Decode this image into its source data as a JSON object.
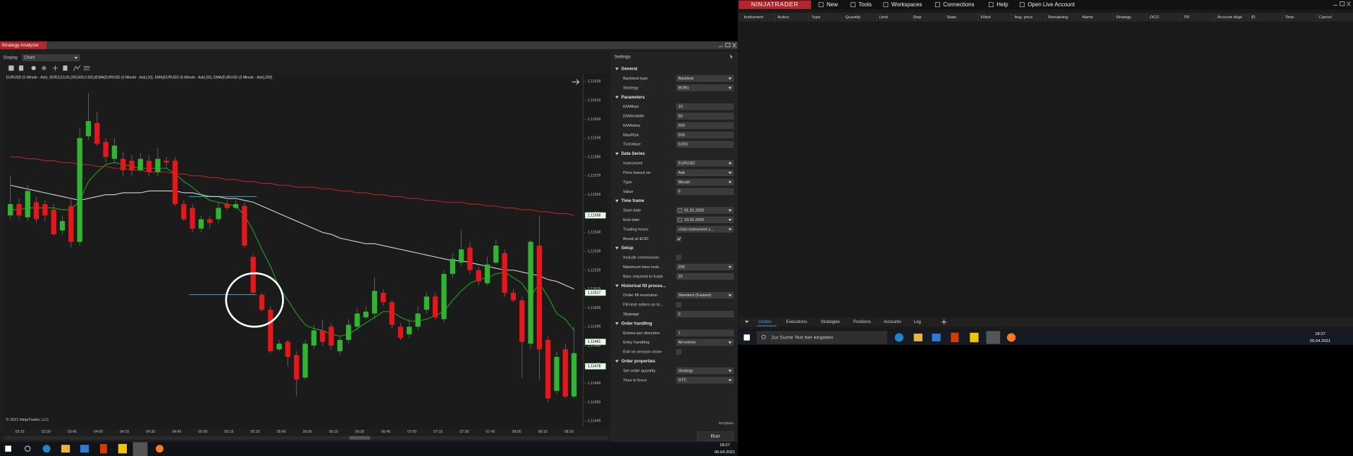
{
  "strategy_analyzer": {
    "title": "Strategy Analyzer",
    "display_label": "Display",
    "display_value": "Chart",
    "chart_header": "EURUSD (5 Minute - Ask), BOR1(10,50,200,500,0.001)/EMA(EURUSD (5 Minute - Ask),10), EMA(EURUSD (5 Minute - Ask),50), EMA(EURUSD (5 Minute - Ask),200)",
    "copyright": "© 2021 NinjaTrader, LLC",
    "chart": {
      "type": "candlestick",
      "up_color": "#2fb52f",
      "down_color": "#e8161b",
      "grid": false,
      "open": [
        1.11558,
        1.11564,
        1.11557,
        1.11565,
        1.11564,
        1.11561,
        1.1155,
        1.11563,
        1.11544,
        1.116,
        1.11607,
        1.11597,
        1.11588,
        1.11588,
        1.11587,
        1.11582,
        1.11587,
        1.11581,
        1.11587,
        1.11587,
        1.11564,
        1.11562,
        1.11551,
        1.11556,
        1.11556,
        1.11564,
        1.11562,
        1.11563,
        1.11536,
        1.11516,
        1.11508,
        1.11487,
        1.11491,
        1.11484,
        1.11472,
        1.11489,
        1.11497,
        1.11499,
        1.11486,
        1.11492,
        1.11499,
        1.11504,
        1.11506,
        1.11517,
        1.11512,
        1.11499,
        1.11495,
        1.11499,
        1.11508,
        1.11515,
        1.11503,
        1.11527,
        1.11533,
        1.11541,
        1.11529,
        1.11522,
        1.11533,
        1.11538,
        1.11517,
        1.11513,
        1.1149,
        1.11542,
        1.11492,
        1.11465,
        1.11487,
        1.11462
      ],
      "high": [
        1.11579,
        1.11567,
        1.11574,
        1.11568,
        1.11566,
        1.11564,
        1.11558,
        1.11567,
        1.11604,
        1.11623,
        1.11613,
        1.11599,
        1.11599,
        1.11592,
        1.1159,
        1.11591,
        1.1159,
        1.11594,
        1.11589,
        1.11589,
        1.11566,
        1.11564,
        1.11558,
        1.11558,
        1.11565,
        1.11566,
        1.11566,
        1.11565,
        1.11538,
        1.11517,
        1.1151,
        1.11492,
        1.11492,
        1.11486,
        1.11492,
        1.115,
        1.11503,
        1.11501,
        1.11494,
        1.11503,
        1.11509,
        1.1151,
        1.11525,
        1.11519,
        1.11513,
        1.11501,
        1.11503,
        1.1151,
        1.11517,
        1.11517,
        1.11529,
        1.11538,
        1.1155,
        1.11544,
        1.11531,
        1.11536,
        1.11545,
        1.1154,
        1.11519,
        1.11515,
        1.11545,
        1.11558,
        1.11494,
        1.11486,
        1.1149,
        1.11499
      ],
      "low": [
        1.11556,
        1.11556,
        1.11555,
        1.11554,
        1.11555,
        1.11547,
        1.11548,
        1.11541,
        1.11542,
        1.11598,
        1.11595,
        1.11586,
        1.11586,
        1.11579,
        1.11579,
        1.11581,
        1.11579,
        1.11579,
        1.11583,
        1.11563,
        1.11555,
        1.11549,
        1.11549,
        1.11551,
        1.11554,
        1.11561,
        1.11561,
        1.11541,
        1.11516,
        1.11507,
        1.11485,
        1.11486,
        1.11478,
        1.11462,
        1.11471,
        1.11487,
        1.11489,
        1.11487,
        1.11484,
        1.1149,
        1.11497,
        1.11503,
        1.11503,
        1.1151,
        1.11498,
        1.11492,
        1.11493,
        1.11497,
        1.11506,
        1.11503,
        1.11501,
        1.11525,
        1.11531,
        1.11527,
        1.11521,
        1.11521,
        1.11532,
        1.11515,
        1.11512,
        1.11472,
        1.11487,
        1.11471,
        1.11459,
        1.11463,
        1.11461,
        1.11461
      ],
      "close": [
        1.11564,
        1.11558,
        1.11571,
        1.11556,
        1.11558,
        1.11548,
        1.11555,
        1.11544,
        1.11599,
        1.11608,
        1.11596,
        1.11589,
        1.11595,
        1.11582,
        1.11582,
        1.11588,
        1.11581,
        1.11588,
        1.11586,
        1.11564,
        1.11556,
        1.11551,
        1.11556,
        1.11554,
        1.11562,
        1.11562,
        1.11564,
        1.11542,
        1.11517,
        1.11508,
        1.11486,
        1.1149,
        1.11483,
        1.11471,
        1.1149,
        1.11497,
        1.11491,
        1.11489,
        1.11492,
        1.115,
        1.11506,
        1.11507,
        1.11518,
        1.11512,
        1.115,
        1.11493,
        1.11499,
        1.11506,
        1.11515,
        1.11504,
        1.11527,
        1.11535,
        1.1154,
        1.11529,
        1.11523,
        1.11532,
        1.11542,
        1.11517,
        1.11513,
        1.11491,
        1.11544,
        1.11487,
        1.11461,
        1.11483,
        1.11462,
        1.11485
      ],
      "lines": [
        {
          "color": "#1fa51f",
          "values": [
            1.11561,
            1.11561,
            1.11562,
            1.11562,
            1.11562,
            1.11562,
            1.11561,
            1.11561,
            1.11566,
            1.11576,
            1.11581,
            1.11585,
            1.11586,
            1.11585,
            1.11584,
            1.11583,
            1.11583,
            1.11583,
            1.11583,
            1.1158,
            1.11576,
            1.11573,
            1.11569,
            1.11566,
            1.11565,
            1.11564,
            1.11563,
            1.11558,
            1.1155,
            1.1154,
            1.11531,
            1.1152,
            1.11513,
            1.11506,
            1.115,
            1.11498,
            1.11497,
            1.11495,
            1.11494,
            1.11495,
            1.11498,
            1.11501,
            1.11504,
            1.11507,
            1.11507,
            1.11504,
            1.11502,
            1.11502,
            1.11503,
            1.11505,
            1.11507,
            1.11513,
            1.11518,
            1.11522,
            1.11524,
            1.11525,
            1.11527,
            1.11528,
            1.11525,
            1.11522,
            1.11515,
            1.11522,
            1.11515,
            1.11506,
            1.11503,
            1.11497
          ]
        },
        {
          "color": "#d6d6d6",
          "values": [
            1.11574,
            1.11573,
            1.11572,
            1.11571,
            1.1157,
            1.11569,
            1.11568,
            1.11567,
            1.11566,
            1.11567,
            1.11568,
            1.11569,
            1.11569,
            1.1157,
            1.1157,
            1.1157,
            1.11571,
            1.11571,
            1.11571,
            1.11571,
            1.1157,
            1.1157,
            1.11569,
            1.11568,
            1.11568,
            1.11567,
            1.11567,
            1.11566,
            1.11565,
            1.11563,
            1.11561,
            1.11559,
            1.11557,
            1.11555,
            1.11553,
            1.11551,
            1.11549,
            1.11548,
            1.11546,
            1.11545,
            1.11544,
            1.11543,
            1.11543,
            1.11542,
            1.11541,
            1.1154,
            1.11539,
            1.11538,
            1.11537,
            1.11536,
            1.11535,
            1.11534,
            1.11534,
            1.11533,
            1.11532,
            1.11531,
            1.1153,
            1.11529,
            1.11529,
            1.11528,
            1.11527,
            1.11526,
            1.11524,
            1.11523,
            1.11521,
            1.11519
          ]
        },
        {
          "color": "#b3262b",
          "values": [
            1.11589,
            1.11589,
            1.11588,
            1.11588,
            1.11587,
            1.11587,
            1.11586,
            1.11586,
            1.11585,
            1.11585,
            1.11584,
            1.11584,
            1.11583,
            1.11583,
            1.11582,
            1.11582,
            1.11581,
            1.11581,
            1.11581,
            1.1158,
            1.1158,
            1.11579,
            1.11579,
            1.11578,
            1.11578,
            1.11577,
            1.11577,
            1.11576,
            1.11576,
            1.11575,
            1.11575,
            1.11574,
            1.11574,
            1.11573,
            1.11573,
            1.11573,
            1.11572,
            1.11572,
            1.11571,
            1.11571,
            1.1157,
            1.1157,
            1.11569,
            1.11569,
            1.11568,
            1.11568,
            1.11567,
            1.11567,
            1.11566,
            1.11566,
            1.11565,
            1.11565,
            1.11565,
            1.11564,
            1.11564,
            1.11563,
            1.11563,
            1.11562,
            1.11562,
            1.11561,
            1.11561,
            1.1156,
            1.1156,
            1.11559,
            1.11559,
            1.11558
          ]
        }
      ],
      "levels": [
        {
          "value": 1.11568,
          "color": "#3ec5d6"
        },
        {
          "value": 1.11516,
          "color": "#3ec5d6"
        }
      ],
      "ylim": [
        1.11446,
        1.11632
      ],
      "yticks": [
        {
          "value": 1.11449,
          "label": "1,11449"
        },
        {
          "value": 1.11459,
          "label": "1,11459"
        },
        {
          "value": 1.11469,
          "label": "1,11469"
        },
        {
          "value": 1.11479,
          "label": "1,11479"
        },
        {
          "value": 1.11489,
          "label": "1,11489"
        },
        {
          "value": 1.11499,
          "label": "1,11499"
        },
        {
          "value": 1.11509,
          "label": "1,11509"
        },
        {
          "value": 1.11519,
          "label": "1,11519"
        },
        {
          "value": 1.11529,
          "label": "1,11529"
        },
        {
          "value": 1.11539,
          "label": "1,11539"
        },
        {
          "value": 1.11549,
          "label": "1,11549"
        },
        {
          "value": 1.11559,
          "label": "1,11559"
        },
        {
          "value": 1.11569,
          "label": "1,11569"
        },
        {
          "value": 1.11579,
          "label": "1,11579"
        },
        {
          "value": 1.11589,
          "label": "1,11589"
        },
        {
          "value": 1.11599,
          "label": "1,11599"
        },
        {
          "value": 1.11609,
          "label": "1,11609"
        },
        {
          "value": 1.11619,
          "label": "1,11619"
        },
        {
          "value": 1.11629,
          "label": "1,11629"
        }
      ],
      "price_markers": [
        {
          "value": 1.11558,
          "label": "1,11558"
        },
        {
          "value": 1.11517,
          "label": "1,11517"
        },
        {
          "value": 1.11491,
          "label": "1,11491"
        },
        {
          "value": 1.11478,
          "label": "1,11478"
        }
      ],
      "xticks": [
        "03:15",
        "03:30",
        "03:45",
        "04:00",
        "04:15",
        "04:30",
        "04:45",
        "05:00",
        "05:15",
        "05:30",
        "05:45",
        "06:00",
        "06:15",
        "06:30",
        "06:45",
        "07:00",
        "07:15",
        "07:30",
        "07:45",
        "08:00",
        "08:15",
        "08:30"
      ]
    },
    "settings": {
      "title": "Settings",
      "sections": [
        {
          "title": "General",
          "rows": [
            {
              "label": "Backtest type",
              "value": "Backtest",
              "control": "dropdown"
            },
            {
              "label": "Strategy",
              "value": "BOR1",
              "control": "dropdown"
            }
          ]
        },
        {
          "title": "Parameters",
          "rows": [
            {
              "label": "EMAfast",
              "value": "10",
              "control": "text"
            },
            {
              "label": "EMAmiddle",
              "value": "50",
              "control": "text"
            },
            {
              "label": "EMAslow",
              "value": "200",
              "control": "text"
            },
            {
              "label": "MaxRisk",
              "value": "500",
              "control": "text"
            },
            {
              "label": "TickValue",
              "value": "0,001",
              "control": "text"
            }
          ]
        },
        {
          "title": "Data Series",
          "rows": [
            {
              "label": "Instrument",
              "value": "EURUSD",
              "control": "dropdown"
            },
            {
              "label": "Price based on",
              "value": "Ask",
              "control": "dropdown"
            },
            {
              "label": "Type",
              "value": "Minute",
              "control": "dropdown"
            },
            {
              "label": "Value",
              "value": "5",
              "control": "text"
            }
          ]
        },
        {
          "title": "Time frame",
          "rows": [
            {
              "label": "Start date",
              "value": "01.01.2020",
              "control": "date"
            },
            {
              "label": "End date",
              "value": "10.01.2020",
              "control": "date"
            },
            {
              "label": "Trading hours",
              "value": "<Use instrument s...",
              "control": "dropdown"
            },
            {
              "label": "Break at EOD",
              "checked": true,
              "control": "checkbox"
            }
          ]
        },
        {
          "title": "Setup",
          "rows": [
            {
              "label": "Include commission",
              "checked": false,
              "control": "checkbox"
            },
            {
              "label": "Maximum bars look...",
              "value": "256",
              "control": "dropdown"
            },
            {
              "label": "Bars required to trade",
              "value": "20",
              "control": "text"
            }
          ]
        },
        {
          "title": "Historical fill proces...",
          "rows": [
            {
              "label": "Order fill resolution",
              "value": "Standard (Fastest)",
              "control": "dropdown"
            },
            {
              "label": "Fill limit orders on to...",
              "checked": false,
              "control": "checkbox"
            },
            {
              "label": "Slippage",
              "value": "0",
              "control": "text"
            }
          ]
        },
        {
          "title": "Order handling",
          "rows": [
            {
              "label": "Entries per direction",
              "value": "1",
              "control": "text"
            },
            {
              "label": "Entry handling",
              "value": "All entries",
              "control": "dropdown"
            },
            {
              "label": "Exit on session close",
              "checked": false,
              "control": "checkbox"
            }
          ]
        },
        {
          "title": "Order properties",
          "rows": [
            {
              "label": "Set order quantity",
              "value": "Strategy",
              "control": "dropdown"
            },
            {
              "label": "Time in force",
              "value": "GTC",
              "control": "dropdown"
            }
          ]
        }
      ],
      "template": "template",
      "run": "Run"
    }
  },
  "control_center": {
    "logo": "NINJATRADER",
    "menu": [
      "New",
      "Tools",
      "Workspaces",
      "Connections",
      "Help",
      "Open Live Account"
    ],
    "columns": [
      "Instrument",
      "Action",
      "Type",
      "Quantity",
      "Limit",
      "Stop",
      "State",
      "Filled",
      "Avg. price",
      "Remaining",
      "Name",
      "Strategy",
      "OCO",
      "TIF",
      "Account displ.",
      "ID",
      "Time",
      "Cancel"
    ],
    "tabs": [
      "Orders",
      "Executions",
      "Strategies",
      "Positions",
      "Accounts",
      "Log"
    ]
  },
  "taskbar_right": {
    "search": "Zur Suche Text hier eingeben",
    "time": "18:27",
    "date": "06.04.2021"
  },
  "taskbar_left": {
    "time": "18:27",
    "date": "06.04.2021"
  }
}
